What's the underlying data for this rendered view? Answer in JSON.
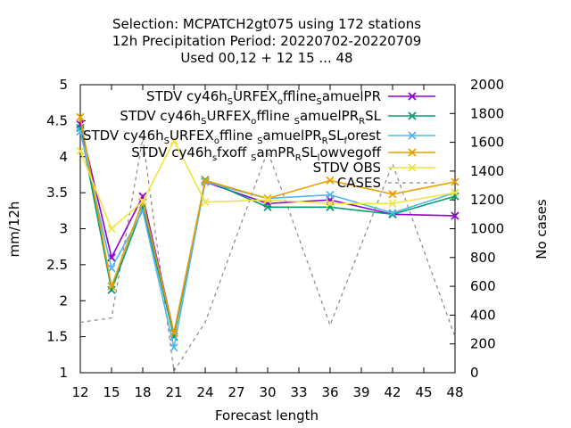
{
  "chart_data": {
    "type": "line",
    "title_lines": [
      "Selection: MCPATCH2gt075 using   172 stations",
      "12h Precipitation    Period: 20220702-20220709",
      "Used  00,12  + 12 15 ... 48"
    ],
    "xlabel": "Forecast length",
    "ylabel": "mm/12h",
    "y2label": "No cases",
    "x_ticks": [
      12,
      15,
      18,
      21,
      24,
      27,
      30,
      33,
      36,
      39,
      42,
      45,
      48
    ],
    "xlim": [
      12,
      48
    ],
    "ylim": [
      1,
      5
    ],
    "y_ticks": [
      1,
      1.5,
      2,
      2.5,
      3,
      3.5,
      4,
      4.5,
      5
    ],
    "y_tick_labels": [
      "1",
      "1.5",
      "2",
      "2.5",
      "3",
      "3.5",
      "4",
      "4.5",
      "5"
    ],
    "y2lim": [
      0,
      2000
    ],
    "y2_ticks": [
      0,
      200,
      400,
      600,
      800,
      1000,
      1200,
      1400,
      1600,
      1800,
      2000
    ],
    "legend_position": "top-right",
    "series": [
      {
        "name_parts": [
          [
            "STDV cy46h",
            false
          ],
          [
            "S",
            true
          ],
          [
            "URFEX",
            false
          ],
          [
            "o",
            true
          ],
          [
            "ffline",
            false
          ],
          [
            "S",
            true
          ],
          [
            "amuelPR",
            false
          ]
        ],
        "color": "#9400d3",
        "marker": "x",
        "x": [
          12,
          15,
          18,
          21,
          24,
          30,
          36,
          42,
          48
        ],
        "values": [
          4.45,
          2.6,
          3.45,
          1.55,
          3.65,
          3.35,
          3.4,
          3.2,
          3.18
        ]
      },
      {
        "name_parts": [
          [
            "STDV cy46h",
            false
          ],
          [
            "S",
            true
          ],
          [
            "URFEX",
            false
          ],
          [
            "o",
            true
          ],
          [
            "ffline ",
            false
          ],
          [
            "S",
            true
          ],
          [
            "amuelPR",
            false
          ],
          [
            "R",
            true
          ],
          [
            "SL",
            false
          ]
        ],
        "color": "#009e73",
        "marker": "x",
        "x": [
          12,
          15,
          18,
          21,
          24,
          30,
          36,
          42,
          48
        ],
        "values": [
          4.4,
          2.15,
          3.3,
          1.5,
          3.68,
          3.3,
          3.3,
          3.2,
          3.45
        ]
      },
      {
        "name_parts": [
          [
            "STDV cy46h",
            false
          ],
          [
            "S",
            true
          ],
          [
            "URFEX",
            false
          ],
          [
            "o",
            true
          ],
          [
            "ffline ",
            false
          ],
          [
            "S",
            true
          ],
          [
            "amuelPR",
            false
          ],
          [
            "R",
            true
          ],
          [
            "SL",
            false
          ],
          [
            "f",
            true
          ],
          [
            "orest",
            false
          ]
        ],
        "color": "#56b4e9",
        "marker": "x",
        "x": [
          12,
          15,
          18,
          21,
          24,
          30,
          36,
          42,
          48
        ],
        "values": [
          4.35,
          2.45,
          3.25,
          1.35,
          3.65,
          3.42,
          3.47,
          3.22,
          3.5
        ]
      },
      {
        "name_parts": [
          [
            "STDV cy46h",
            false
          ],
          [
            "s",
            true
          ],
          [
            "fxoff ",
            false
          ],
          [
            "S",
            true
          ],
          [
            "amPR",
            false
          ],
          [
            "R",
            true
          ],
          [
            "SL",
            false
          ],
          [
            "l",
            true
          ],
          [
            "owvegoff",
            false
          ]
        ],
        "color": "#e69f00",
        "marker": "x",
        "x": [
          12,
          15,
          18,
          21,
          24,
          30,
          36,
          42,
          48
        ],
        "values": [
          4.55,
          2.2,
          3.38,
          1.55,
          3.67,
          3.42,
          3.67,
          3.48,
          3.65
        ]
      },
      {
        "name_parts": [
          [
            "STDV OBS",
            false
          ]
        ],
        "color": "#f0e442",
        "marker": "x",
        "x": [
          12,
          15,
          18,
          21,
          24,
          30,
          36,
          42,
          48
        ],
        "values": [
          4.08,
          3.0,
          3.38,
          4.22,
          3.37,
          3.4,
          3.35,
          3.35,
          3.5
        ]
      },
      {
        "name_parts": [
          [
            "CASES",
            false
          ]
        ],
        "color": "#888888",
        "marker": "none",
        "dashed": true,
        "axis": "y2",
        "x": [
          12,
          15,
          18,
          21,
          24,
          30,
          36,
          42,
          48
        ],
        "values": [
          350,
          380,
          1630,
          10,
          350,
          1540,
          330,
          1450,
          250
        ]
      }
    ]
  }
}
